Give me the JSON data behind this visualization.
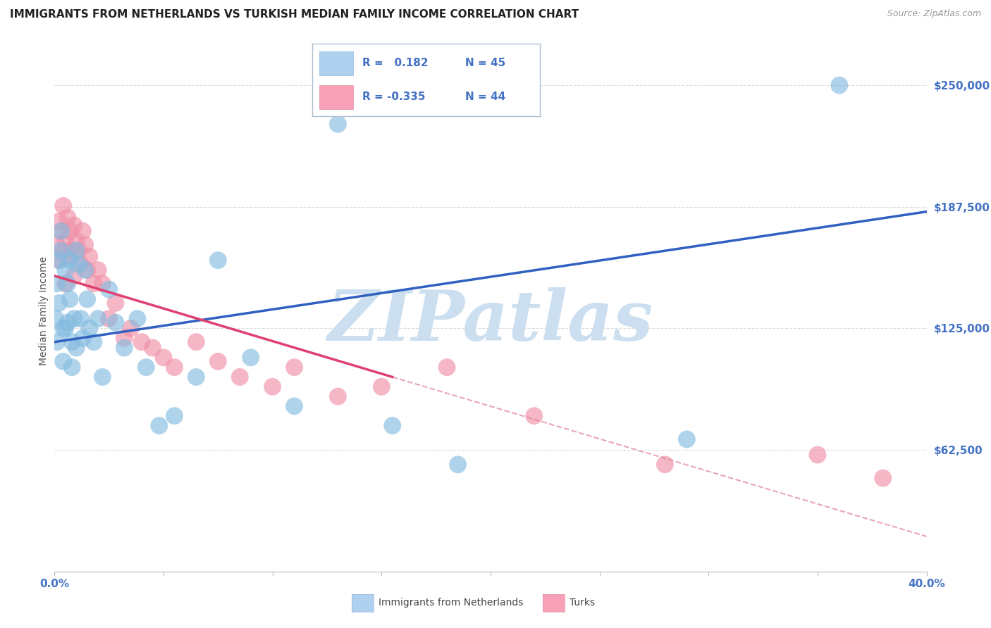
{
  "title": "IMMIGRANTS FROM NETHERLANDS VS TURKISH MEDIAN FAMILY INCOME CORRELATION CHART",
  "source": "Source: ZipAtlas.com",
  "ylabel": "Median Family Income",
  "yticks": [
    0,
    62500,
    125000,
    187500,
    250000
  ],
  "ytick_labels": [
    "",
    "$62,500",
    "$125,000",
    "$187,500",
    "$250,000"
  ],
  "xmin": 0.0,
  "xmax": 0.4,
  "ymin": 0,
  "ymax": 268000,
  "watermark": "ZIPatlas",
  "nl_color": "#85bce0",
  "turk_color": "#f090a8",
  "background_color": "#ffffff",
  "grid_color": "#d8d8d8",
  "title_color": "#222222",
  "source_color": "#999999",
  "ytick_color": "#4472c4",
  "watermark_color": "#ccdff0",
  "nl_trendline_color": "#3060c0",
  "turk_solid_color": "#e04070",
  "turk_dash_color": "#e08090",
  "nl_trendline": [
    0.0,
    0.4,
    118000,
    185000
  ],
  "turk_trendline_solid": [
    0.0,
    0.155,
    152000,
    100000
  ],
  "turk_trendline_dash": [
    0.155,
    0.4,
    100000,
    18000
  ],
  "nl_scatter_x": [
    0.0005,
    0.001,
    0.001,
    0.002,
    0.002,
    0.003,
    0.003,
    0.004,
    0.004,
    0.005,
    0.005,
    0.006,
    0.006,
    0.007,
    0.007,
    0.008,
    0.008,
    0.009,
    0.01,
    0.01,
    0.011,
    0.012,
    0.013,
    0.014,
    0.015,
    0.016,
    0.018,
    0.02,
    0.022,
    0.025,
    0.028,
    0.032,
    0.038,
    0.042,
    0.048,
    0.055,
    0.065,
    0.075,
    0.09,
    0.11,
    0.13,
    0.155,
    0.185,
    0.29,
    0.36
  ],
  "nl_scatter_y": [
    130000,
    148000,
    118000,
    160000,
    138000,
    175000,
    165000,
    125000,
    108000,
    155000,
    125000,
    148000,
    128000,
    160000,
    140000,
    118000,
    105000,
    130000,
    165000,
    115000,
    158000,
    130000,
    120000,
    155000,
    140000,
    125000,
    118000,
    130000,
    100000,
    145000,
    128000,
    115000,
    130000,
    105000,
    75000,
    80000,
    100000,
    160000,
    110000,
    85000,
    230000,
    75000,
    55000,
    68000,
    250000
  ],
  "turk_scatter_x": [
    0.001,
    0.002,
    0.002,
    0.003,
    0.004,
    0.004,
    0.005,
    0.005,
    0.006,
    0.006,
    0.007,
    0.008,
    0.009,
    0.009,
    0.01,
    0.011,
    0.012,
    0.013,
    0.014,
    0.015,
    0.016,
    0.018,
    0.02,
    0.022,
    0.025,
    0.028,
    0.032,
    0.035,
    0.04,
    0.045,
    0.05,
    0.055,
    0.065,
    0.075,
    0.085,
    0.1,
    0.11,
    0.13,
    0.15,
    0.18,
    0.22,
    0.28,
    0.35,
    0.38
  ],
  "turk_scatter_y": [
    168000,
    180000,
    160000,
    175000,
    188000,
    165000,
    170000,
    148000,
    182000,
    162000,
    175000,
    165000,
    178000,
    152000,
    170000,
    165000,
    158000,
    175000,
    168000,
    155000,
    162000,
    148000,
    155000,
    148000,
    130000,
    138000,
    120000,
    125000,
    118000,
    115000,
    110000,
    105000,
    118000,
    108000,
    100000,
    95000,
    105000,
    90000,
    95000,
    105000,
    80000,
    55000,
    60000,
    48000
  ],
  "legend_box_color": "#ffffff",
  "legend_border_color": "#b0c0d0",
  "nl_legend_box_color": "#b0d0f0",
  "turk_legend_box_color": "#f8a0b8",
  "legend_R_color": "#4472c4",
  "legend_text_R1": "R =   0.182",
  "legend_text_N1": "N = 45",
  "legend_text_R2": "R = -0.335",
  "legend_text_N2": "N = 44",
  "bottom_legend_nl": "Immigrants from Netherlands",
  "bottom_legend_turk": "Turks"
}
